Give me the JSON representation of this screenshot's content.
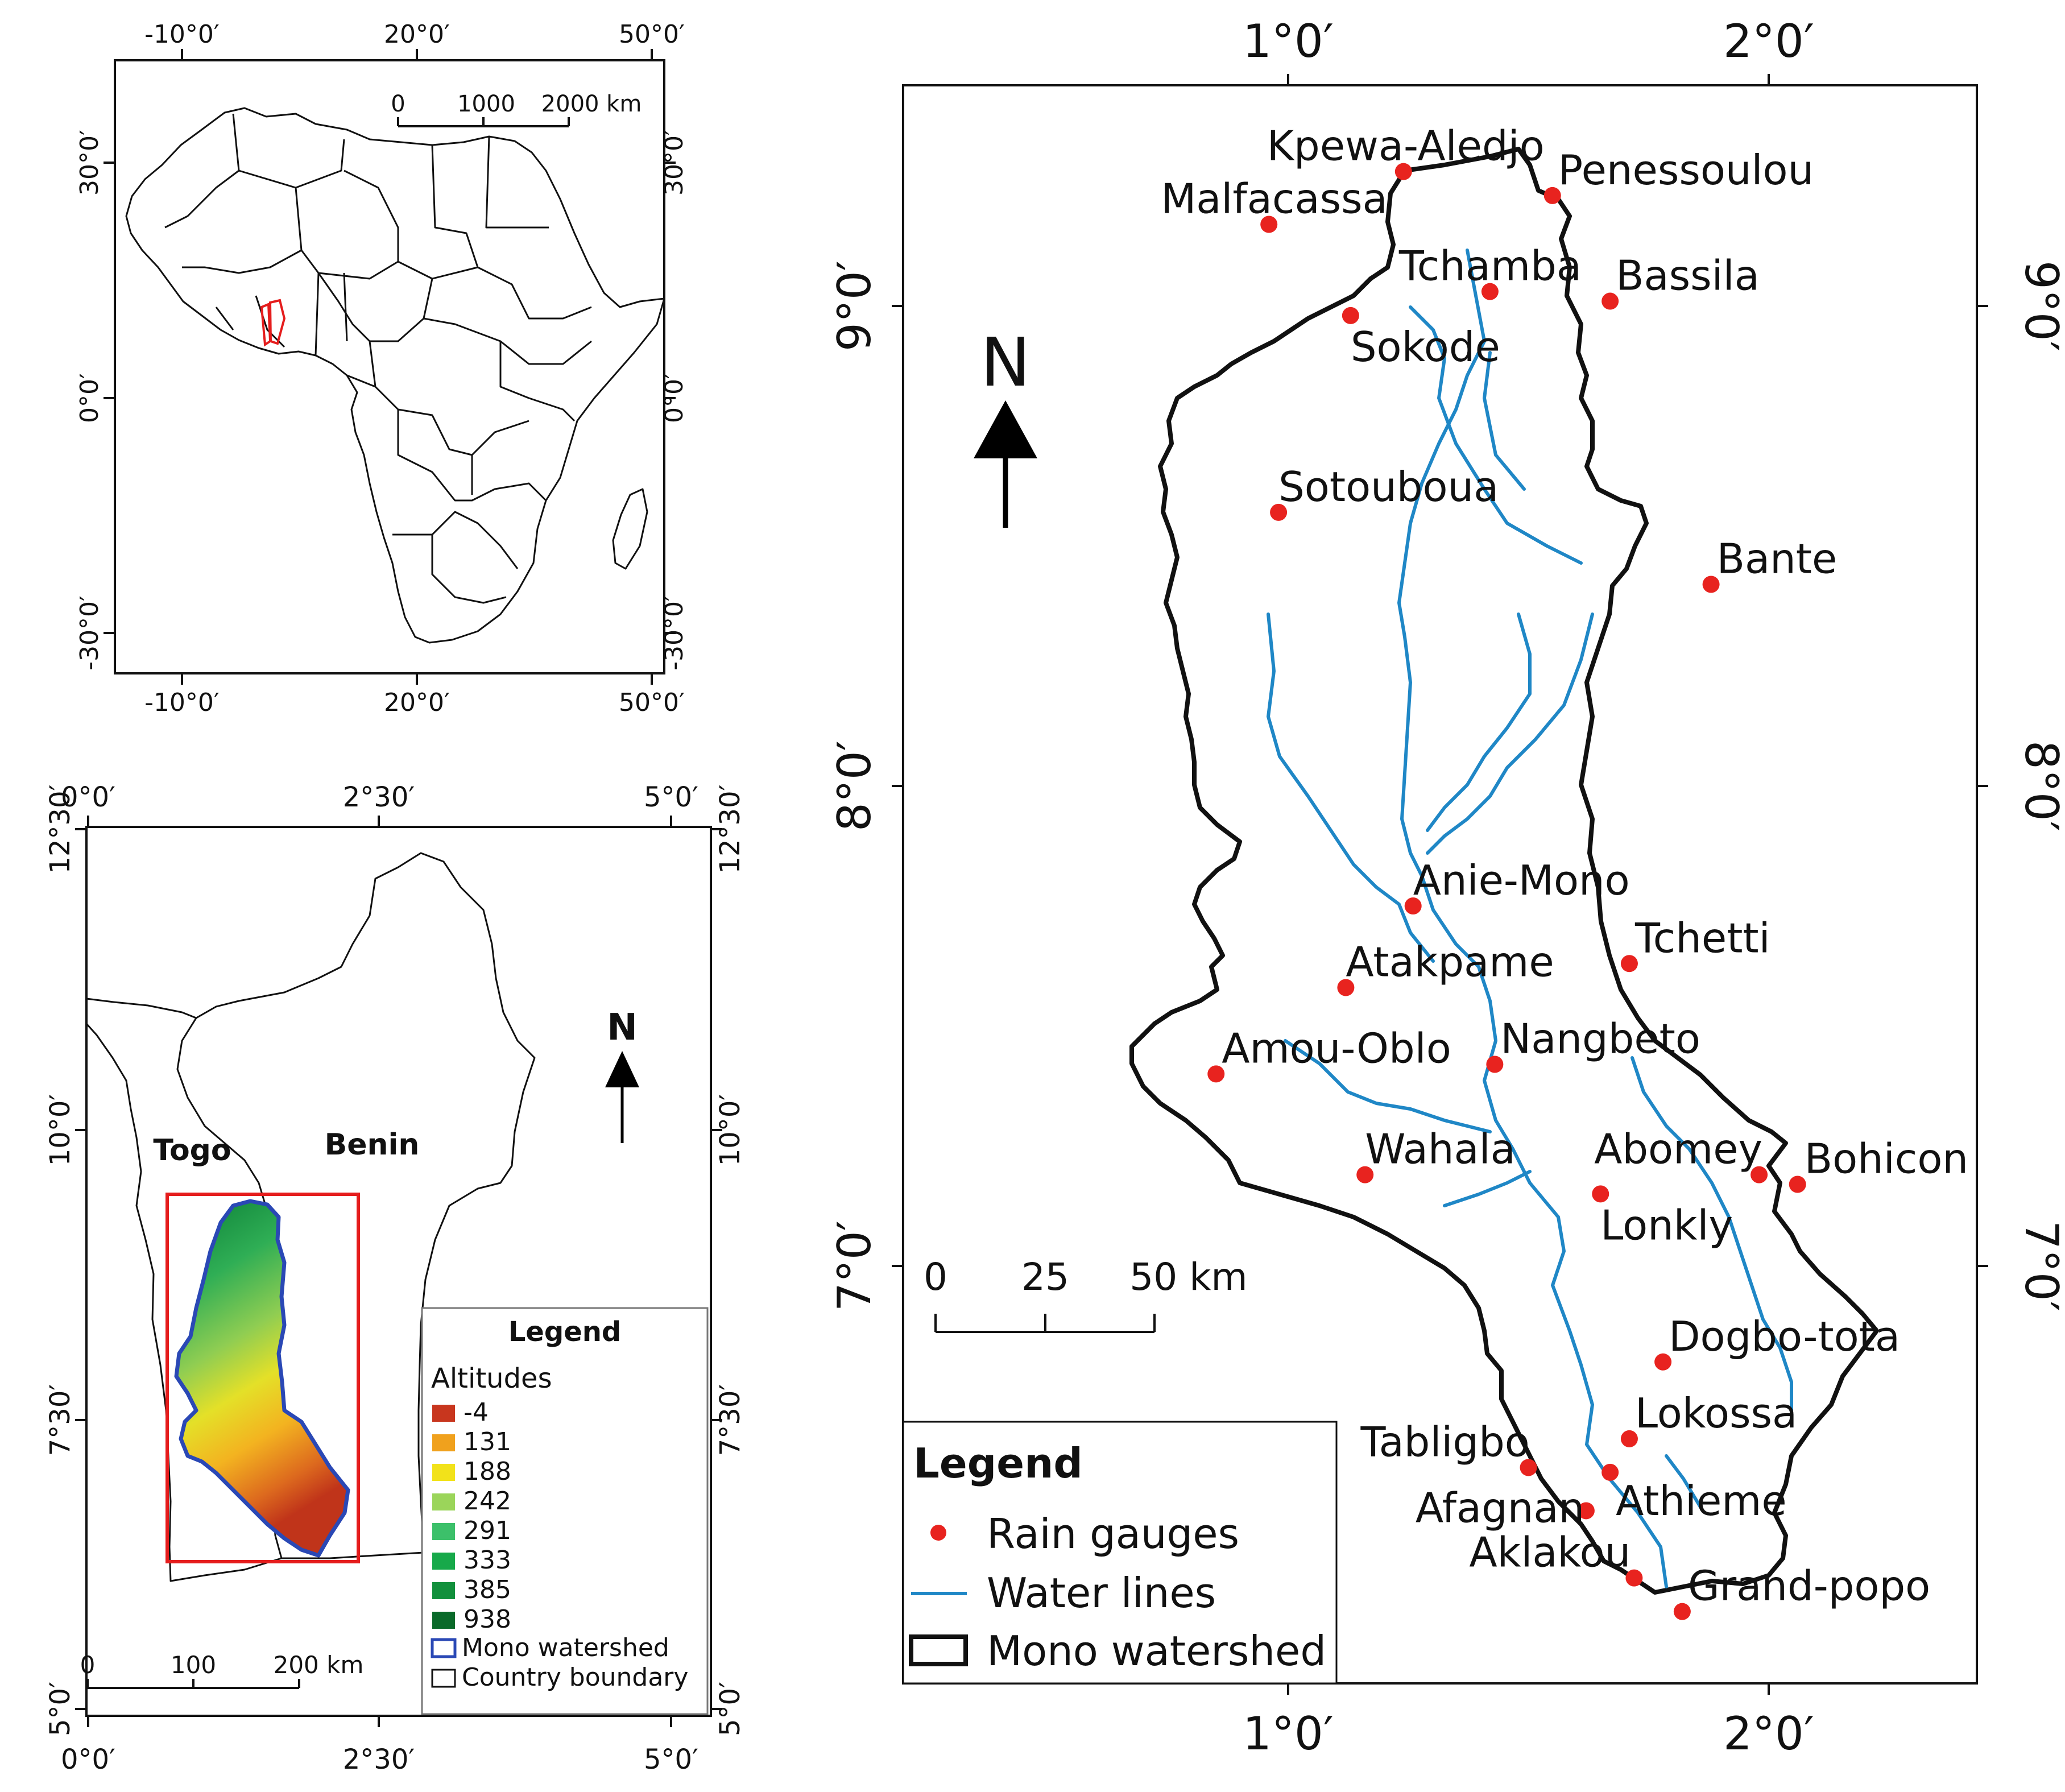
{
  "colors": {
    "gauge": "#e8231f",
    "river": "#1f87c6",
    "watershed_outline": "#2a48b5",
    "extent_box": "#e51d1d",
    "africa_highlight": "#e51d1d"
  },
  "africa_map": {
    "top_labels": [
      "-10°0′",
      "20°0′",
      "50°0′"
    ],
    "bottom_labels": [
      "-10°0′",
      "20°0′",
      "50°0′"
    ],
    "left_labels": [
      "30°0′",
      "0°0′",
      "-30°0′"
    ],
    "right_labels": [
      "30°0′",
      "0°0′",
      "-30°0′"
    ],
    "scale_labels": [
      "0",
      "1000",
      "2000 km"
    ]
  },
  "region_map": {
    "top_labels": [
      "0°0′",
      "2°30′",
      "5°0′"
    ],
    "bottom_labels": [
      "0°0′",
      "2°30′",
      "5°0′"
    ],
    "left_labels": [
      "12°30′",
      "10°0′",
      "7°30′",
      "5°0′"
    ],
    "right_labels": [
      "12°30′",
      "10°0′",
      "7°30′",
      "5°0′"
    ],
    "country_labels": [
      "Togo",
      "Benin"
    ],
    "north": "N",
    "scale_labels": [
      "0",
      "100",
      "200 km"
    ],
    "legend": {
      "title": "Legend",
      "subtitle": "Altitudes",
      "classes": [
        {
          "label": "-4",
          "color": "#c8361e"
        },
        {
          "label": "131",
          "color": "#f0a11d"
        },
        {
          "label": "188",
          "color": "#f2e21a"
        },
        {
          "label": "242",
          "color": "#9bd55a"
        },
        {
          "label": "291",
          "color": "#3cc06a"
        },
        {
          "label": "333",
          "color": "#17a94a"
        },
        {
          "label": "385",
          "color": "#12903c"
        },
        {
          "label": "938",
          "color": "#0a6a2a"
        }
      ],
      "watershed_label": "Mono watershed",
      "boundary_label": "Country boundary"
    }
  },
  "main_map": {
    "top_labels": [
      "1°0′",
      "2°0′"
    ],
    "bottom_labels": [
      "1°0′",
      "2°0′"
    ],
    "left_labels": [
      "9°0′",
      "8°0′",
      "7°0′"
    ],
    "right_labels": [
      "9°0′",
      "8°0′",
      "7°0′"
    ],
    "north": "N",
    "scale_labels": [
      "0",
      "25",
      "50 km"
    ],
    "legend": {
      "title": "Legend",
      "rain_gauges": "Rain gauges",
      "water_lines": "Water lines",
      "watershed": "Mono watershed"
    },
    "stations": [
      {
        "name": "Kpewa-Aledjo",
        "lon": 1.24,
        "lat": 9.28
      },
      {
        "name": "Penessoulou",
        "lon": 1.55,
        "lat": 9.23
      },
      {
        "name": "Malfacassa",
        "lon": 0.96,
        "lat": 9.17
      },
      {
        "name": "Tchamba",
        "lon": 1.42,
        "lat": 9.03
      },
      {
        "name": "Bassila",
        "lon": 1.67,
        "lat": 9.01
      },
      {
        "name": "Sokode",
        "lon": 1.13,
        "lat": 8.98
      },
      {
        "name": "Sotouboua",
        "lon": 0.98,
        "lat": 8.57
      },
      {
        "name": "Bante",
        "lon": 1.88,
        "lat": 8.42
      },
      {
        "name": "Anie-Mono",
        "lon": 1.26,
        "lat": 7.75
      },
      {
        "name": "Tchetti",
        "lon": 1.71,
        "lat": 7.63
      },
      {
        "name": "Atakpame",
        "lon": 1.12,
        "lat": 7.58
      },
      {
        "name": "Amou-Oblo",
        "lon": 0.85,
        "lat": 7.4
      },
      {
        "name": "Nangbeto",
        "lon": 1.43,
        "lat": 7.42
      },
      {
        "name": "Wahala",
        "lon": 1.16,
        "lat": 7.19
      },
      {
        "name": "Abomey",
        "lon": 1.98,
        "lat": 7.19
      },
      {
        "name": "Bohicon",
        "lon": 2.06,
        "lat": 7.17
      },
      {
        "name": "Lonkly",
        "lon": 1.65,
        "lat": 7.15
      },
      {
        "name": "Dogbo-tota",
        "lon": 1.78,
        "lat": 6.8
      },
      {
        "name": "Lokossa",
        "lon": 1.71,
        "lat": 6.64
      },
      {
        "name": "Tabligbo",
        "lon": 1.5,
        "lat": 6.58
      },
      {
        "name": "Athieme",
        "lon": 1.67,
        "lat": 6.57
      },
      {
        "name": "Afagnan",
        "lon": 1.62,
        "lat": 6.49
      },
      {
        "name": "Aklakou",
        "lon": 1.72,
        "lat": 6.35
      },
      {
        "name": "Grand-popo",
        "lon": 1.82,
        "lat": 6.28
      }
    ]
  }
}
